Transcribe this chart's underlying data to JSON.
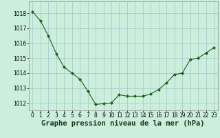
{
  "x": [
    0,
    1,
    2,
    3,
    4,
    5,
    6,
    7,
    8,
    9,
    10,
    11,
    12,
    13,
    14,
    15,
    16,
    17,
    18,
    19,
    20,
    21,
    22,
    23
  ],
  "y": [
    1018.1,
    1017.5,
    1016.5,
    1015.3,
    1014.4,
    1014.0,
    1013.6,
    1012.8,
    1011.9,
    1011.95,
    1012.0,
    1012.55,
    1012.45,
    1012.45,
    1012.45,
    1012.6,
    1012.9,
    1013.35,
    1013.9,
    1014.0,
    1014.9,
    1015.0,
    1015.35,
    1015.7
  ],
  "line_color": "#1a5c1a",
  "marker": "D",
  "marker_size": 2.2,
  "background_color": "#cceedd",
  "grid_color": "#aacccc",
  "xlabel": "Graphe pression niveau de la mer (hPa)",
  "xlabel_fontsize": 7.5,
  "tick_fontsize": 5.5,
  "ylim": [
    1011.5,
    1018.8
  ],
  "xlim": [
    -0.5,
    23.5
  ],
  "yticks": [
    1012,
    1013,
    1014,
    1015,
    1016,
    1017,
    1018
  ],
  "xticks": [
    0,
    1,
    2,
    3,
    4,
    5,
    6,
    7,
    8,
    9,
    10,
    11,
    12,
    13,
    14,
    15,
    16,
    17,
    18,
    19,
    20,
    21,
    22,
    23
  ]
}
